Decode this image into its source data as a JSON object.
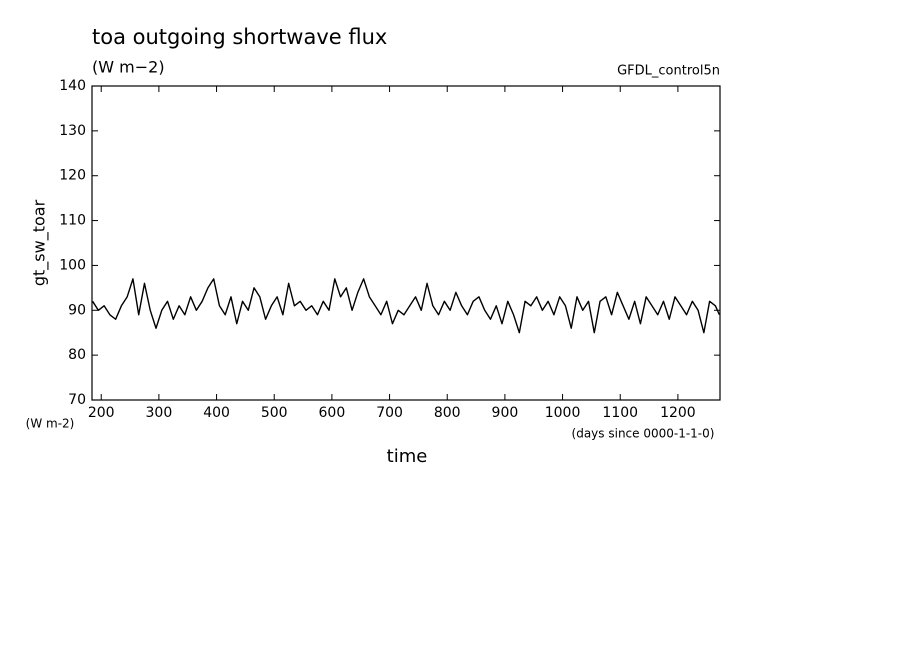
{
  "chart_data": {
    "type": "line",
    "title": "toa outgoing shortwave flux",
    "subtitle": "(W m−2)",
    "source_label": "GFDL_control5n",
    "ylabel": "gt_sw_toar",
    "y_units": "(W m-2)",
    "xlabel": "time",
    "x_units": "(days since 0000-1-1-0)",
    "color": "#000000",
    "xlim": [
      184,
      1273
    ],
    "ylim": [
      70,
      140
    ],
    "xticks": [
      200,
      300,
      400,
      500,
      600,
      700,
      800,
      900,
      1000,
      1100,
      1200
    ],
    "yticks": [
      70,
      80,
      90,
      100,
      110,
      120,
      130,
      140
    ],
    "x": [
      185,
      195,
      205,
      215,
      225,
      235,
      245,
      255,
      265,
      275,
      285,
      295,
      305,
      315,
      325,
      335,
      345,
      355,
      365,
      375,
      385,
      395,
      405,
      415,
      425,
      435,
      445,
      455,
      465,
      475,
      485,
      495,
      505,
      515,
      525,
      535,
      545,
      555,
      565,
      575,
      585,
      595,
      605,
      615,
      625,
      635,
      645,
      655,
      665,
      675,
      685,
      695,
      705,
      715,
      725,
      735,
      745,
      755,
      765,
      775,
      785,
      795,
      805,
      815,
      825,
      835,
      845,
      855,
      865,
      875,
      885,
      895,
      905,
      915,
      925,
      935,
      945,
      955,
      965,
      975,
      985,
      995,
      1005,
      1015,
      1025,
      1035,
      1045,
      1055,
      1065,
      1075,
      1085,
      1095,
      1105,
      1115,
      1125,
      1135,
      1145,
      1155,
      1165,
      1175,
      1185,
      1195,
      1205,
      1215,
      1225,
      1235,
      1245,
      1255,
      1265,
      1272
    ],
    "values": [
      92,
      90,
      91,
      89,
      88,
      91,
      93,
      97,
      89,
      96,
      90,
      86,
      90,
      92,
      88,
      91,
      89,
      93,
      90,
      92,
      95,
      97,
      91,
      89,
      93,
      87,
      92,
      90,
      95,
      93,
      88,
      91,
      93,
      89,
      96,
      91,
      92,
      90,
      91,
      89,
      92,
      90,
      97,
      93,
      95,
      90,
      94,
      97,
      93,
      91,
      89,
      92,
      87,
      90,
      89,
      91,
      93,
      90,
      96,
      91,
      89,
      92,
      90,
      94,
      91,
      89,
      92,
      93,
      90,
      88,
      91,
      87,
      92,
      89,
      85,
      92,
      91,
      93,
      90,
      92,
      89,
      93,
      91,
      86,
      93,
      90,
      92,
      85,
      92,
      93,
      89,
      94,
      91,
      88,
      92,
      87,
      93,
      91,
      89,
      92,
      88,
      93,
      91,
      89,
      92,
      90,
      85,
      92,
      91,
      89
    ]
  }
}
